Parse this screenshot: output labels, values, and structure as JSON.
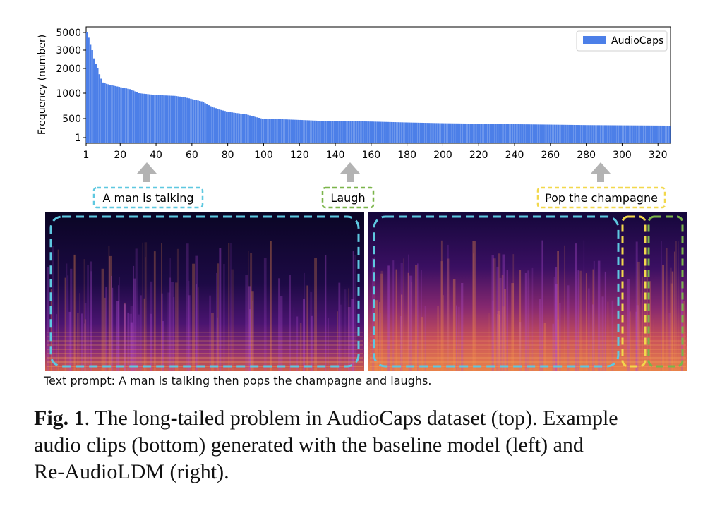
{
  "chart_data": {
    "type": "bar",
    "ylabel": "Frequency (number)",
    "xlabel": "",
    "title": "",
    "yticks": [
      "5000",
      "3000",
      "2000",
      "1000",
      "500",
      "1"
    ],
    "xticks": [
      "1",
      "20",
      "40",
      "60",
      "80",
      "100",
      "120",
      "140",
      "160",
      "180",
      "200",
      "220",
      "240",
      "260",
      "280",
      "300",
      "320"
    ],
    "xlim": [
      1,
      327
    ],
    "legend": "top-right",
    "series": [
      {
        "name": "AudioCaps",
        "color": "#4c7fe8",
        "curve": [
          [
            1,
            5000
          ],
          [
            2,
            4300
          ],
          [
            3,
            3500
          ],
          [
            4,
            3000
          ],
          [
            5,
            2500
          ],
          [
            6,
            2200
          ],
          [
            7,
            2000
          ],
          [
            8,
            1700
          ],
          [
            9,
            1500
          ],
          [
            10,
            1350
          ],
          [
            12,
            1300
          ],
          [
            15,
            1250
          ],
          [
            20,
            1180
          ],
          [
            25,
            1120
          ],
          [
            28,
            1050
          ],
          [
            30,
            1000
          ],
          [
            40,
            950
          ],
          [
            50,
            930
          ],
          [
            55,
            900
          ],
          [
            60,
            850
          ],
          [
            65,
            800
          ],
          [
            70,
            700
          ],
          [
            75,
            640
          ],
          [
            80,
            600
          ],
          [
            90,
            560
          ],
          [
            100,
            490
          ],
          [
            110,
            400
          ],
          [
            120,
            320
          ],
          [
            130,
            250
          ],
          [
            140,
            230
          ],
          [
            160,
            190
          ],
          [
            180,
            140
          ],
          [
            200,
            110
          ],
          [
            220,
            95
          ],
          [
            240,
            80
          ],
          [
            260,
            70
          ],
          [
            280,
            60
          ],
          [
            300,
            55
          ],
          [
            326,
            50
          ]
        ]
      }
    ]
  },
  "annotations": {
    "talking": {
      "label": "A man is talking",
      "color": "#5ec8e0"
    },
    "laugh": {
      "label": "Laugh",
      "color": "#7bb54a"
    },
    "champagne": {
      "label": "Pop the champagne",
      "color": "#f2d84c"
    }
  },
  "prompt": "Text prompt: A man is talking then pops the champagne and laughs.",
  "caption": {
    "label": "Fig. 1",
    "line1": ". The long-tailed problem in AudioCaps dataset (top). Example",
    "line2": "audio clips (bottom) generated with the baseline model (left) and",
    "line3": "Re-AudioLDM (right)."
  }
}
